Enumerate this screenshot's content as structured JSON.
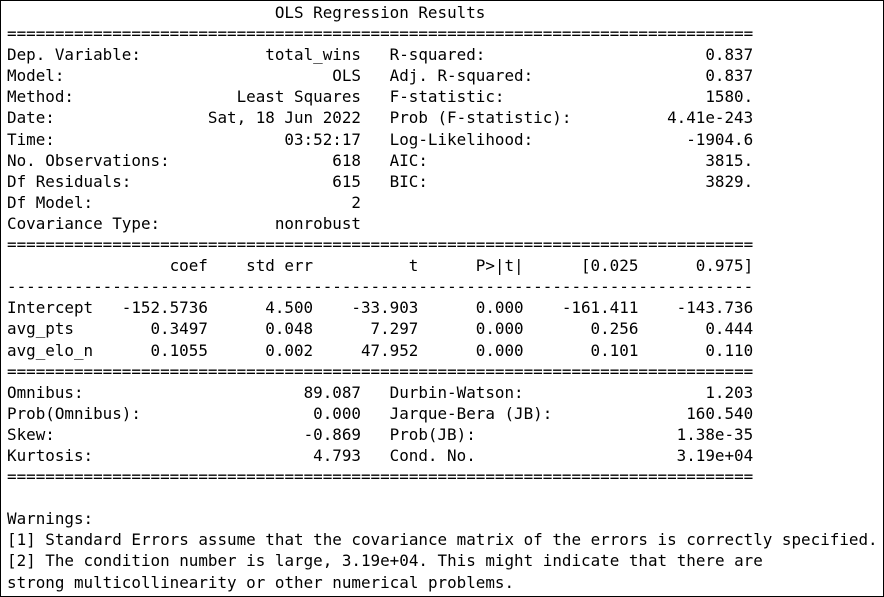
{
  "title": "OLS Regression Results",
  "separator": {
    "double_char": "=",
    "single_char": "-",
    "width": 78
  },
  "info_rows": [
    {
      "label_left": "Dep. Variable:",
      "value_left": "total_wins",
      "label_right": "R-squared:",
      "value_right": "0.837"
    },
    {
      "label_left": "Model:",
      "value_left": "OLS",
      "label_right": "Adj. R-squared:",
      "value_right": "0.837"
    },
    {
      "label_left": "Method:",
      "value_left": "Least Squares",
      "label_right": "F-statistic:",
      "value_right": "1580."
    },
    {
      "label_left": "Date:",
      "value_left": "Sat, 18 Jun 2022",
      "label_right": "Prob (F-statistic):",
      "value_right": "4.41e-243"
    },
    {
      "label_left": "Time:",
      "value_left": "03:52:17",
      "label_right": "Log-Likelihood:",
      "value_right": "-1904.6"
    },
    {
      "label_left": "No. Observations:",
      "value_left": "618",
      "label_right": "AIC:",
      "value_right": "3815."
    },
    {
      "label_left": "Df Residuals:",
      "value_left": "615",
      "label_right": "BIC:",
      "value_right": "3829."
    },
    {
      "label_left": "Df Model:",
      "value_left": "2",
      "label_right": "",
      "value_right": ""
    },
    {
      "label_left": "Covariance Type:",
      "value_left": "nonrobust",
      "label_right": "",
      "value_right": ""
    }
  ],
  "coef_table": {
    "headers": [
      "",
      "coef",
      "std err",
      "t",
      "P>|t|",
      "[0.025",
      "0.975]"
    ],
    "rows": [
      {
        "name": "Intercept",
        "coef": "-152.5736",
        "std_err": "4.500",
        "t": "-33.903",
        "p_value": "0.000",
        "ci_lower": "-161.411",
        "ci_upper": "-143.736"
      },
      {
        "name": "avg_pts",
        "coef": "0.3497",
        "std_err": "0.048",
        "t": "7.297",
        "p_value": "0.000",
        "ci_lower": "0.256",
        "ci_upper": "0.444"
      },
      {
        "name": "avg_elo_n",
        "coef": "0.1055",
        "std_err": "0.002",
        "t": "47.952",
        "p_value": "0.000",
        "ci_lower": "0.101",
        "ci_upper": "0.110"
      }
    ]
  },
  "diagnostics_rows": [
    {
      "label_left": "Omnibus:",
      "value_left": "89.087",
      "label_right": "Durbin-Watson:",
      "value_right": "1.203"
    },
    {
      "label_left": "Prob(Omnibus):",
      "value_left": "0.000",
      "label_right": "Jarque-Bera (JB):",
      "value_right": "160.540"
    },
    {
      "label_left": "Skew:",
      "value_left": "-0.869",
      "label_right": "Prob(JB):",
      "value_right": "1.38e-35"
    },
    {
      "label_left": "Kurtosis:",
      "value_left": "4.793",
      "label_right": "Cond. No.",
      "value_right": "3.19e+04"
    }
  ],
  "warnings": {
    "heading": "Warnings:",
    "lines": [
      "[1] Standard Errors assume that the covariance matrix of the errors is correctly specified.",
      "[2] The condition number is large, 3.19e+04. This might indicate that there are",
      "strong multicollinearity or other numerical problems."
    ]
  }
}
